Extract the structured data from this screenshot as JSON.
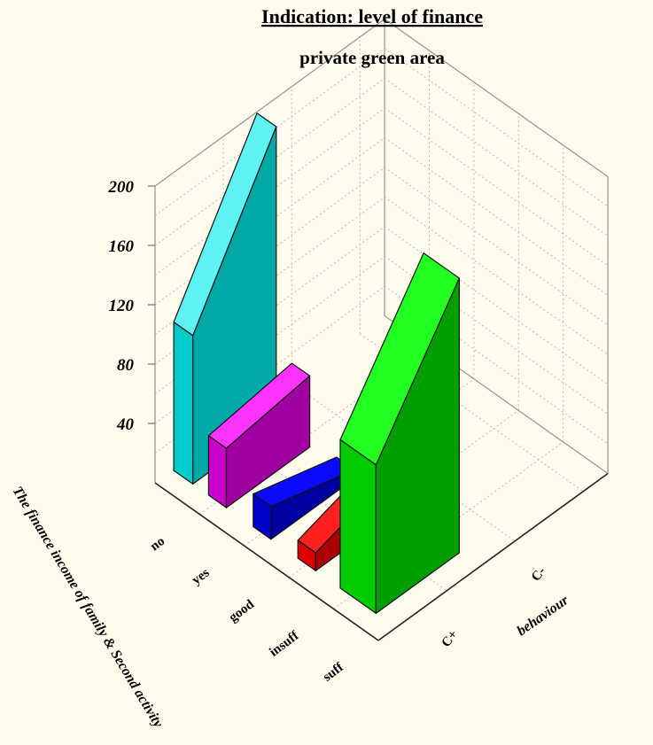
{
  "chart_data": {
    "type": "bar",
    "title": "Indication: level of finance",
    "subtitle": "private green area",
    "xlabel": "The finance income of family & Second activity",
    "ylabel": "behaviour",
    "x_categories": [
      "no",
      "yes",
      "good",
      "insuff",
      "suff"
    ],
    "y_categories": [
      "C+",
      "C-"
    ],
    "z_ticks": [
      40,
      80,
      120,
      160,
      200
    ],
    "zlim": [
      0,
      200
    ],
    "grid": true,
    "bars": [
      {
        "x_category": "no",
        "y_category": "C+",
        "value": 100,
        "back_value": 200,
        "color": "#00cccc",
        "side_color": "#00a8a8",
        "top_color": "#5ff2f2"
      },
      {
        "x_category": "yes",
        "y_category": "C+",
        "value": 40,
        "back_value": 48,
        "color": "#cc00cc",
        "side_color": "#a000a0",
        "top_color": "#ff33ff"
      },
      {
        "x_category": "good",
        "y_category": "C+",
        "value": 22,
        "back_value": 6,
        "color": "#0000cc",
        "side_color": "#0000a0",
        "top_color": "#0a0aff"
      },
      {
        "x_category": "insuff",
        "y_category": "C+",
        "value": 12,
        "back_value": 30,
        "color": "#dd0000",
        "side_color": "#aa0000",
        "top_color": "#ff2020"
      },
      {
        "x_category": "suff",
        "y_category": "C+",
        "value": 100,
        "back_value": 185,
        "color": "#00cc00",
        "side_color": "#009f00",
        "top_color": "#20ff20"
      }
    ]
  }
}
